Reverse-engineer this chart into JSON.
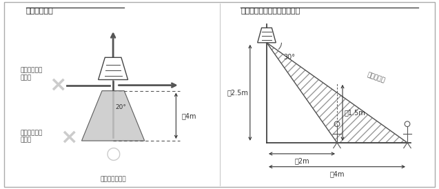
{
  "title_left": "上から見た図",
  "title_right": "横から見た図（正面のとき）",
  "bg_color": "#ffffff",
  "text_color": "#333333",
  "gray_color": "#888888",
  "light_gray": "#bbbbbb",
  "arrow_color": "#555555",
  "label_4m": "約4m",
  "label_2m": "約2m",
  "label_2_5m": "約2.5m",
  "label_1_5m": "約1.5m",
  "label_20deg": "20°",
  "label_30deg": "30°",
  "label_detection": "検知エリア",
  "label_front_enter": "正面からの進入",
  "label_cross_enter": "横切るように\nに進入",
  "label_other_enter": "正面以外から\nの進入"
}
